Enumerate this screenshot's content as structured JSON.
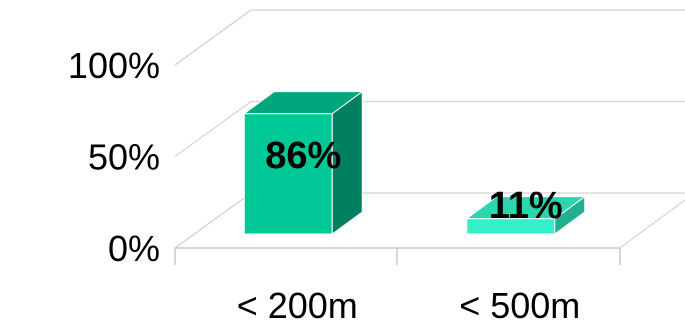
{
  "chart_data": {
    "type": "bar",
    "categories": [
      "< 200m",
      "< 500m"
    ],
    "values": [
      86,
      11
    ],
    "data_labels": [
      "86%",
      "11%"
    ],
    "ylim": [
      0,
      100
    ],
    "yticks": [
      0,
      50,
      100
    ],
    "ytick_labels": [
      "0%",
      "50%",
      "100%"
    ],
    "title": "",
    "xlabel": "",
    "ylabel": "",
    "grid": true,
    "legend": "none",
    "style": "3d-column",
    "colors": {
      "series": [
        "#00c896",
        "#33f0c8"
      ],
      "series_side": [
        "#008060",
        "#22b090"
      ],
      "series_top": [
        "#00a77c",
        "#2bd6ae"
      ],
      "grid": "#d4d4d4"
    }
  }
}
